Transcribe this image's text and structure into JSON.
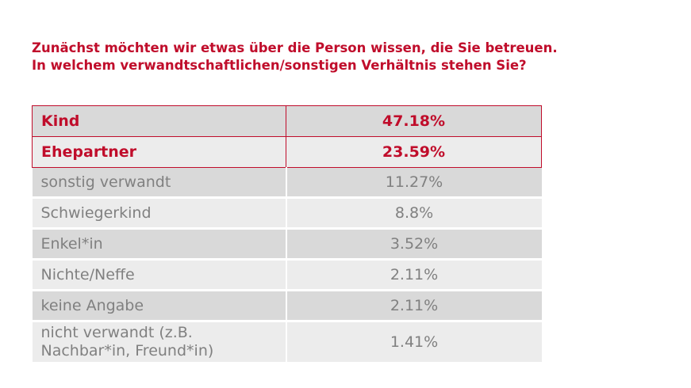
{
  "title": {
    "line1": "Zunächst möchten wir etwas über die Person wissen, die Sie betreuen.",
    "line2": "In welchem verwandtschaftlichen/sonstigen Verhältnis stehen Sie?"
  },
  "table": {
    "rows": [
      {
        "label": "Kind",
        "value": "47.18%"
      },
      {
        "label": "Ehepartner",
        "value": "23.59%"
      },
      {
        "label": "sonstig verwandt",
        "value": "11.27%"
      },
      {
        "label": "Schwiegerkind",
        "value": "8.8%"
      },
      {
        "label": "Enkel*in",
        "value": "3.52%"
      },
      {
        "label": "Nichte/Neffe",
        "value": "2.11%"
      },
      {
        "label": "keine Angabe",
        "value": "2.11%"
      },
      {
        "label": "nicht verwandt (z.B. Nachbar*in, Freund*in)",
        "value": "1.41%"
      }
    ]
  },
  "colors": {
    "accent": "#c00d2b",
    "text_gray": "#808080",
    "row_dark": "#d9d9d9",
    "row_light": "#ececec"
  }
}
